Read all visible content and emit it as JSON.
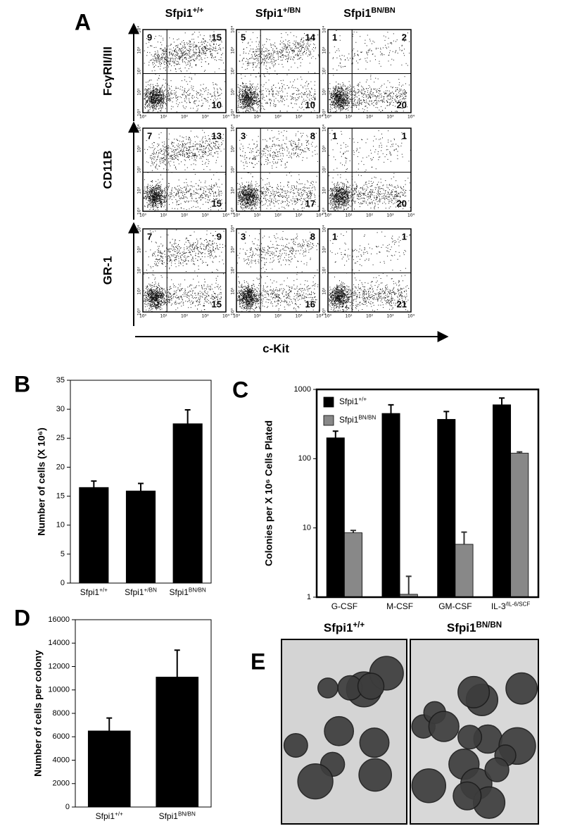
{
  "flow": {
    "panel_label": "A",
    "columns": [
      "Sfpi1+/+",
      "Sfpi1+/BN",
      "Sfpi1BN/BN"
    ],
    "rows": [
      {
        "label": "FcγRII/III",
        "quadrants": [
          [
            9,
            15,
            10
          ],
          [
            5,
            14,
            10
          ],
          [
            1,
            2,
            20
          ]
        ]
      },
      {
        "label": "CD11B",
        "quadrants": [
          [
            7,
            13,
            15
          ],
          [
            3,
            8,
            17
          ],
          [
            1,
            1,
            20
          ]
        ]
      },
      {
        "label": "GR-1",
        "quadrants": [
          [
            7,
            9,
            15
          ],
          [
            3,
            8,
            16
          ],
          [
            1,
            1,
            21
          ]
        ]
      }
    ],
    "axis_ticks": [
      "10⁰",
      "10¹",
      "10²",
      "10³",
      "10⁴"
    ],
    "x_label": "c-Kit"
  },
  "chart_data": [
    {
      "type": "bar",
      "panel_label": "B",
      "y_label": "Number of cells (X 10⁶)",
      "categories": [
        "Sfpi1+/+",
        "Sfpi1+/BN",
        "Sfpi1BN/BN"
      ],
      "values": [
        16.5,
        15.9,
        27.5
      ],
      "errors": [
        1.1,
        1.3,
        2.4
      ],
      "color": "#000000",
      "ylim": [
        0,
        35
      ],
      "yticks": [
        0,
        5,
        10,
        15,
        20,
        25,
        30,
        35
      ]
    },
    {
      "type": "bar",
      "panel_label": "C",
      "y_label": "Colonies per X 10⁶ Cells Plated",
      "log_scale": true,
      "categories": [
        "G-CSF",
        "M-CSF",
        "GM-CSF",
        "IL-3/IL-6/SCF"
      ],
      "series": [
        {
          "name": "Sfpi1+/+",
          "color": "#000000",
          "values": [
            200,
            450,
            370,
            600
          ],
          "errors": [
            50,
            150,
            110,
            150
          ]
        },
        {
          "name": "Sfpi1BN/BN",
          "color": "#888888",
          "values": [
            8.5,
            1.1,
            5.8,
            120
          ],
          "errors": [
            0.7,
            0.9,
            2.9,
            5
          ]
        }
      ],
      "legend": "upper left",
      "ylim": [
        1,
        1000
      ],
      "yticks": [
        1,
        10,
        100,
        1000
      ]
    },
    {
      "type": "bar",
      "panel_label": "D",
      "y_label": "Number of cells per colony",
      "categories": [
        "Sfpi1+/+",
        "Sfpi1BN/BN"
      ],
      "values": [
        6500,
        11100
      ],
      "errors": [
        1100,
        2300
      ],
      "color": "#000000",
      "ylim": [
        0,
        16000
      ],
      "yticks": [
        0,
        2000,
        4000,
        6000,
        8000,
        10000,
        12000,
        14000,
        16000
      ]
    }
  ],
  "micrographs": {
    "panel_label": "E",
    "labels": [
      "Sfpi1+/+",
      "Sfpi1BN/BN"
    ]
  }
}
